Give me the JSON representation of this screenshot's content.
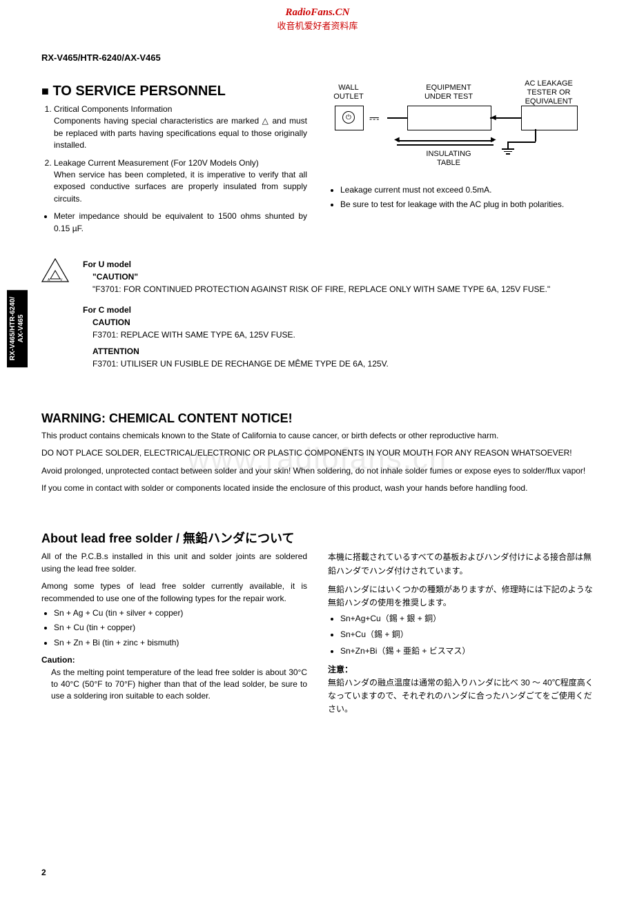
{
  "header": {
    "site": "RadioFans.CN",
    "sub": "收音机爱好者资料库"
  },
  "model_line": "RX-V465/HTR-6240/AX-V465",
  "side_tab": "RX-V465/HTR-6240/\nAX-V465",
  "section1": {
    "heading": "TO SERVICE PERSONNEL",
    "items": [
      {
        "title": "Critical Components Information",
        "body": "Components having special characteristics are marked △ and must be replaced with parts having specifications equal to those originally installed."
      },
      {
        "title": "Leakage Current Measurement (For 120V Models Only)",
        "body": "When service has been completed, it is imperative to verify that all exposed conductive surfaces are properly insulated from supply circuits."
      }
    ],
    "bullet_left": "Meter impedance should be equivalent to 1500 ohms shunted by 0.15 µF.",
    "bullets_right": [
      "Leakage current must not exceed 0.5mA.",
      "Be sure to test for leakage with the AC plug in both polarities."
    ]
  },
  "diagram": {
    "wall_outlet": "WALL\nOUTLET",
    "equipment": "EQUIPMENT\nUNDER TEST",
    "tester": "AC LEAKAGE\nTESTER OR\nEQUIVALENT",
    "insulating": "INSULATING\nTABLE"
  },
  "caution": {
    "u_title": "For U model",
    "u_caution": "\"CAUTION\"",
    "u_body": "\"F3701: FOR CONTINUED PROTECTION AGAINST RISK OF FIRE, REPLACE ONLY WITH SAME TYPE 6A, 125V FUSE.\"",
    "c_title": "For C model",
    "c_caution": "CAUTION",
    "c_body": "F3701:   REPLACE WITH SAME TYPE 6A, 125V FUSE.",
    "c_att": "ATTENTION",
    "c_att_body": "F3701:   UTILISER UN FUSIBLE DE RECHANGE DE MÊME TYPE DE 6A, 125V."
  },
  "warning": {
    "heading": "WARNING: CHEMICAL CONTENT NOTICE!",
    "p1": "This product contains chemicals known to the State of California to cause cancer, or birth defects or other reproductive harm.",
    "p2": "DO NOT PLACE SOLDER, ELECTRICAL/ELECTRONIC OR PLASTIC COMPONENTS IN YOUR MOUTH FOR ANY REASON WHATSOEVER!",
    "p3": "Avoid prolonged, unprotected contact between solder and your skin! When soldering, do not inhale solder fumes or expose eyes to solder/flux vapor!",
    "p4": "If you come in contact with solder or components located inside the enclosure of this product, wash your hands before handling food."
  },
  "solder": {
    "heading": "About lead free solder / 無鉛ハンダについて",
    "en_p1": "All of the P.C.B.s installed in this unit and solder joints are soldered using the lead free solder.",
    "en_p2": "Among some types of lead free solder currently available, it is recommended to use one of the following types for the repair work.",
    "en_list": [
      "Sn + Ag + Cu (tin + silver + copper)",
      "Sn + Cu (tin + copper)",
      "Sn + Zn + Bi (tin + zinc + bismuth)"
    ],
    "en_caution_h": "Caution:",
    "en_caution": "As the melting point temperature of the lead free solder is about 30°C to 40°C (50°F to 70°F) higher than that of the lead solder, be sure to use a soldering iron suitable to each solder.",
    "jp_p1": "本機に搭載されているすべての基板およびハンダ付けによる接合部は無鉛ハンダでハンダ付けされています。",
    "jp_p2": "無鉛ハンダにはいくつかの種類がありますが、修理時には下記のような無鉛ハンダの使用を推奨します。",
    "jp_list": [
      "Sn+Ag+Cu（錫 + 銀 + 銅）",
      "Sn+Cu（錫 + 銅）",
      "Sn+Zn+Bi（錫 + 亜鉛 + ビスマス）"
    ],
    "jp_caution_h": "注意：",
    "jp_caution": "無鉛ハンダの融点温度は通常の鉛入りハンダに比べ 30 ～ 40℃程度高くなっていますので、それぞれのハンダに合ったハンダごてをご使用ください。"
  },
  "watermark": "www.radiofans.cn",
  "page_num": "2"
}
